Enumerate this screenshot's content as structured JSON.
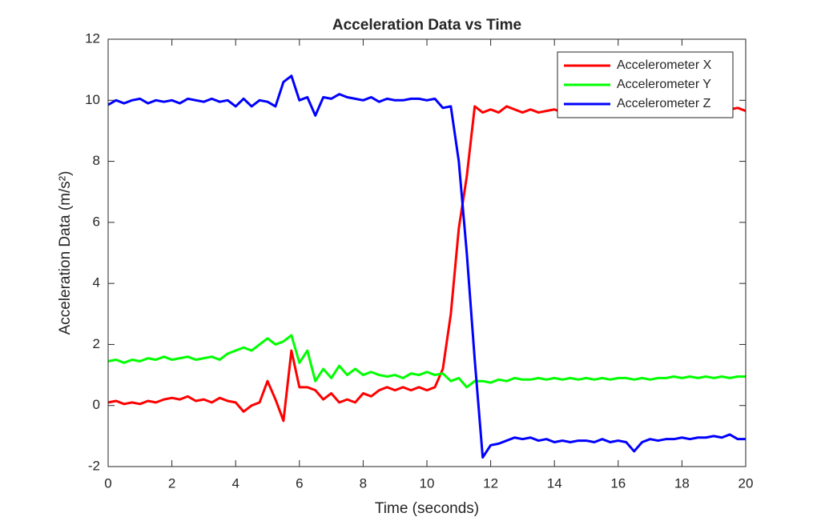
{
  "chart_data": {
    "type": "line",
    "title": "Acceleration Data vs Time",
    "xlabel": "Time (seconds)",
    "ylabel": "Acceleration Data (m/s²)",
    "x": [
      0,
      0.25,
      0.5,
      0.75,
      1,
      1.25,
      1.5,
      1.75,
      2,
      2.25,
      2.5,
      2.75,
      3,
      3.25,
      3.5,
      3.75,
      4,
      4.25,
      4.5,
      4.75,
      5,
      5.25,
      5.5,
      5.75,
      6,
      6.25,
      6.5,
      6.75,
      7,
      7.25,
      7.5,
      7.75,
      8,
      8.25,
      8.5,
      8.75,
      9,
      9.25,
      9.5,
      9.75,
      10,
      10.25,
      10.5,
      10.75,
      11,
      11.25,
      11.5,
      11.75,
      12,
      12.25,
      12.5,
      12.75,
      13,
      13.25,
      13.5,
      13.75,
      14,
      14.25,
      14.5,
      14.75,
      15,
      15.25,
      15.5,
      15.75,
      16,
      16.25,
      16.5,
      16.75,
      17,
      17.25,
      17.5,
      17.75,
      18,
      18.25,
      18.5,
      18.75,
      19,
      19.25,
      19.5,
      19.75,
      20
    ],
    "series": [
      {
        "name": "Accelerometer X",
        "color": "#ff0000",
        "values": [
          0.1,
          0.15,
          0.05,
          0.1,
          0.05,
          0.15,
          0.1,
          0.2,
          0.25,
          0.2,
          0.3,
          0.15,
          0.2,
          0.1,
          0.25,
          0.15,
          0.1,
          -0.2,
          0.0,
          0.1,
          0.8,
          0.2,
          -0.5,
          1.8,
          0.6,
          0.6,
          0.5,
          0.2,
          0.4,
          0.1,
          0.2,
          0.1,
          0.4,
          0.3,
          0.5,
          0.6,
          0.5,
          0.6,
          0.5,
          0.6,
          0.5,
          0.6,
          1.2,
          3.0,
          5.8,
          7.5,
          9.8,
          9.6,
          9.7,
          9.6,
          9.8,
          9.7,
          9.6,
          9.7,
          9.6,
          9.65,
          9.7,
          9.6,
          9.7,
          9.65,
          9.7,
          9.6,
          9.7,
          9.65,
          9.7,
          9.6,
          9.7,
          9.65,
          9.7,
          9.6,
          9.7,
          9.65,
          9.7,
          9.6,
          9.7,
          9.65,
          9.7,
          9.6,
          9.7,
          9.75,
          9.65
        ]
      },
      {
        "name": "Accelerometer Y",
        "color": "#00ff00",
        "values": [
          1.45,
          1.5,
          1.4,
          1.5,
          1.45,
          1.55,
          1.5,
          1.6,
          1.5,
          1.55,
          1.6,
          1.5,
          1.55,
          1.6,
          1.5,
          1.7,
          1.8,
          1.9,
          1.8,
          2.0,
          2.2,
          2.0,
          2.1,
          2.3,
          1.4,
          1.8,
          0.8,
          1.2,
          0.9,
          1.3,
          1.0,
          1.2,
          1.0,
          1.1,
          1.0,
          0.95,
          1.0,
          0.9,
          1.05,
          1.0,
          1.1,
          1.0,
          1.05,
          0.8,
          0.9,
          0.6,
          0.8,
          0.8,
          0.75,
          0.85,
          0.8,
          0.9,
          0.85,
          0.85,
          0.9,
          0.85,
          0.9,
          0.85,
          0.9,
          0.85,
          0.9,
          0.85,
          0.9,
          0.85,
          0.9,
          0.9,
          0.85,
          0.9,
          0.85,
          0.9,
          0.9,
          0.95,
          0.9,
          0.95,
          0.9,
          0.95,
          0.9,
          0.95,
          0.9,
          0.95,
          0.95
        ]
      },
      {
        "name": "Accelerometer Z",
        "color": "#0000ff",
        "values": [
          9.85,
          10.0,
          9.9,
          10.0,
          10.05,
          9.9,
          10.0,
          9.95,
          10.0,
          9.9,
          10.05,
          10.0,
          9.95,
          10.05,
          9.95,
          10.0,
          9.8,
          10.05,
          9.8,
          10.0,
          9.95,
          9.8,
          10.6,
          10.8,
          10.0,
          10.1,
          9.5,
          10.1,
          10.05,
          10.2,
          10.1,
          10.05,
          10.0,
          10.1,
          9.95,
          10.05,
          10.0,
          10.0,
          10.05,
          10.05,
          10.0,
          10.05,
          9.75,
          9.8,
          8.0,
          5.0,
          1.5,
          -1.7,
          -1.3,
          -1.25,
          -1.15,
          -1.05,
          -1.1,
          -1.05,
          -1.15,
          -1.1,
          -1.2,
          -1.15,
          -1.2,
          -1.15,
          -1.15,
          -1.2,
          -1.1,
          -1.2,
          -1.15,
          -1.2,
          -1.5,
          -1.2,
          -1.1,
          -1.15,
          -1.1,
          -1.1,
          -1.05,
          -1.1,
          -1.05,
          -1.05,
          -1.0,
          -1.05,
          -0.95,
          -1.1,
          -1.1
        ]
      }
    ],
    "xlim": [
      0,
      20
    ],
    "xticks": [
      0,
      2,
      4,
      6,
      8,
      10,
      12,
      14,
      16,
      18,
      20
    ],
    "ylim": [
      -2,
      12
    ],
    "yticks": [
      -2,
      0,
      2,
      4,
      6,
      8,
      10,
      12
    ],
    "grid": false,
    "legend": "upper right"
  }
}
